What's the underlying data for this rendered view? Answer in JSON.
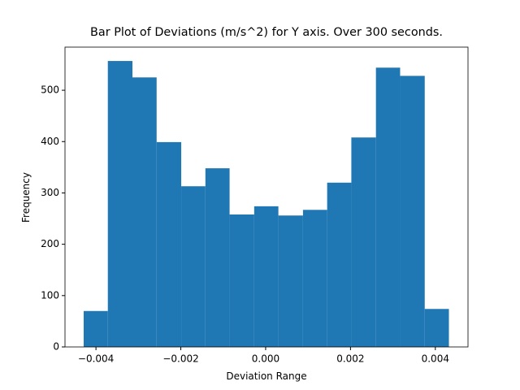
{
  "chart_data": {
    "type": "histogram",
    "title": "Bar Plot of Deviations (m/s^2) for Y axis. Over 300 seconds.",
    "x_label": "Deviation Range",
    "y_label": "Frequency",
    "bins": [
      -0.00429,
      -0.00372,
      -0.00314,
      -0.00257,
      -0.00199,
      -0.00142,
      -0.00085,
      -0.00027,
      0.0003,
      0.00088,
      0.00145,
      0.00202,
      0.0026,
      0.00317,
      0.00375,
      0.00432
    ],
    "values": [
      70,
      557,
      525,
      399,
      313,
      348,
      258,
      274,
      256,
      267,
      320,
      408,
      544,
      528,
      74
    ],
    "color": "#1f77b4",
    "xlim": [
      -0.00473,
      0.00477
    ],
    "xticks": [
      {
        "value": -0.004,
        "label": "−0.004"
      },
      {
        "value": -0.002,
        "label": "−0.002"
      },
      {
        "value": 0,
        "label": "0.000"
      },
      {
        "value": 0.002,
        "label": "0.002"
      },
      {
        "value": 0.004,
        "label": "0.004"
      }
    ],
    "ylim": [
      0,
      584
    ],
    "yticks": [
      0,
      100,
      200,
      300,
      400,
      500
    ]
  }
}
